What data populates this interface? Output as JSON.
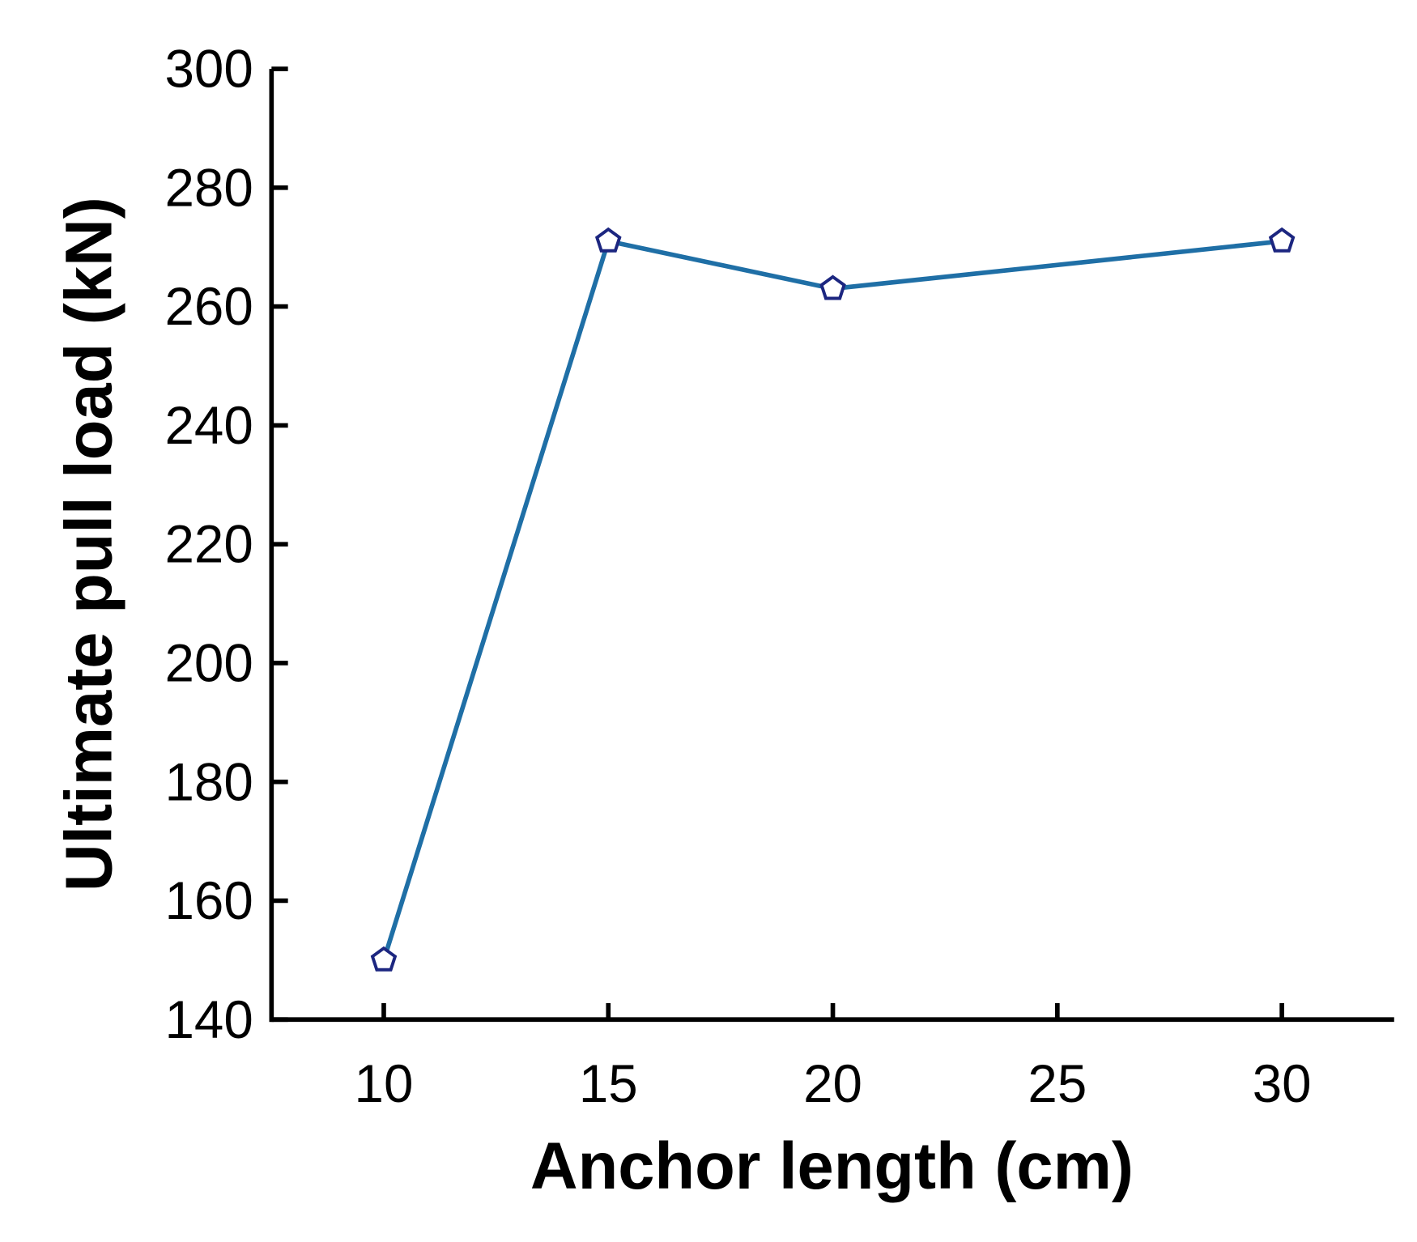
{
  "chart_data": {
    "type": "line",
    "x_label": "Anchor length (cm)",
    "y_label": "Ultimate pull load (kN)",
    "x": [
      10,
      15,
      20,
      30
    ],
    "values": [
      150,
      271,
      263,
      271
    ],
    "color": "#1f6fa6",
    "marker_color": "#1c2680",
    "xlim": [
      7.5,
      32.5
    ],
    "xticks": [
      10,
      15,
      20,
      25,
      30
    ],
    "ylim": [
      140,
      300
    ],
    "yticks": [
      140,
      160,
      180,
      200,
      220,
      240,
      260,
      280,
      300
    ]
  }
}
